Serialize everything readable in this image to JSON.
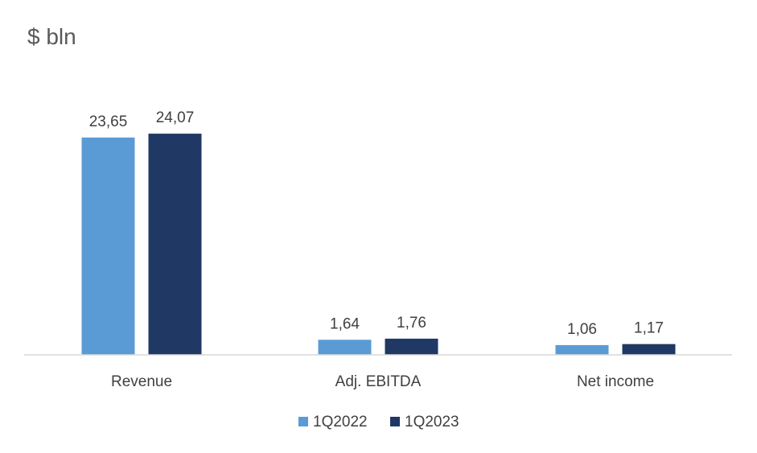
{
  "chart_data": {
    "type": "bar",
    "title": "$ bln",
    "categories": [
      "Revenue",
      "Adj. EBITDA",
      "Net income"
    ],
    "series": [
      {
        "name": "1Q2022",
        "color": "#5B9BD5",
        "values": [
          23.65,
          1.64,
          1.06
        ],
        "labels": [
          "23,65",
          "1,64",
          "1,06"
        ]
      },
      {
        "name": "1Q2023",
        "color": "#1F3864",
        "values": [
          24.07,
          1.76,
          1.17
        ],
        "labels": [
          "24,07",
          "1,76",
          "1,17"
        ]
      }
    ],
    "ylim": [
      0,
      25
    ],
    "grid": false,
    "legend_position": "bottom"
  }
}
